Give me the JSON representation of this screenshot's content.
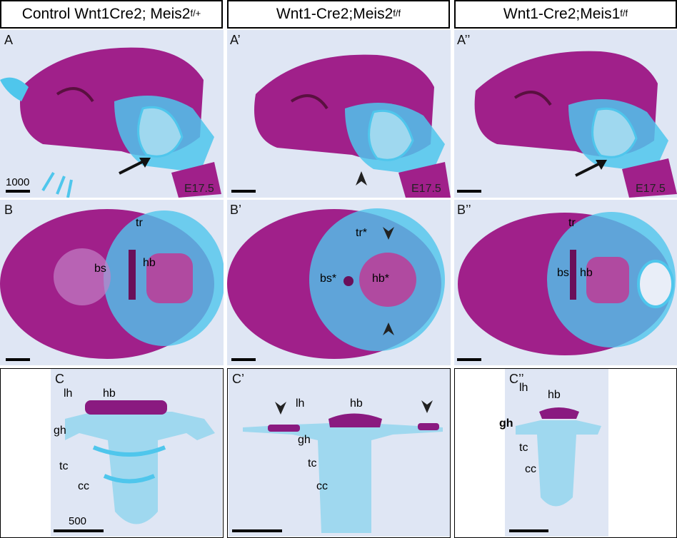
{
  "headers": {
    "col1": {
      "text": "Control Wnt1Cre2; Meis2",
      "sup": "f/+"
    },
    "col2": {
      "text": "Wnt1-Cre2;Meis2",
      "sup": "f/f"
    },
    "col3": {
      "text": "Wnt1-Cre2;Meis1",
      "sup": "f/f"
    }
  },
  "panels": {
    "A": {
      "label": "A",
      "age": "E17.5",
      "scale": "1000"
    },
    "A1": {
      "label": "A’",
      "age": "E17.5"
    },
    "A2": {
      "label": "A’’",
      "age": "E17.5"
    },
    "B": {
      "label": "B",
      "tr": "tr",
      "bs": "bs",
      "hb": "hb"
    },
    "B1": {
      "label": "B’",
      "tr": "tr*",
      "bs": "bs*",
      "hb": "hb*"
    },
    "B2": {
      "label": "B’’",
      "tr": "tr",
      "bs": "bs",
      "hb": "hb"
    },
    "C": {
      "label": "C",
      "lh": "lh",
      "hb": "hb",
      "gh": "gh",
      "tc": "tc",
      "cc": "cc",
      "scale": "500"
    },
    "C1": {
      "label": "C’",
      "lh": "lh",
      "hb": "hb",
      "gh": "gh",
      "tc": "tc",
      "cc": "cc"
    },
    "C2": {
      "label": "C’’",
      "lh": "lh",
      "hb": "hb",
      "gh": "gh",
      "tc": "tc",
      "cc": "cc"
    }
  },
  "colors": {
    "bone": "#a0208a",
    "cartilage": "#4fc6ec",
    "background": "#dfe6f4"
  }
}
